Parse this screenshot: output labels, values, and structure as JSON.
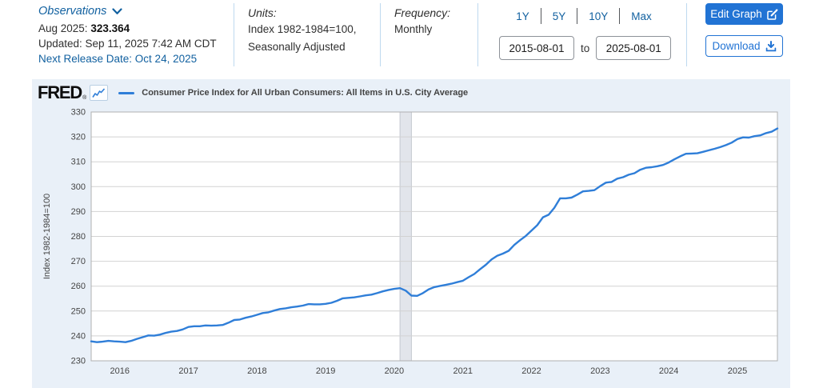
{
  "header": {
    "observations": {
      "label": "Observations",
      "latest_label": "Aug 2025:",
      "latest_value": "323.364",
      "updated": "Updated: Sep 11, 2025 7:42 AM CDT",
      "next_release": "Next Release Date: Oct 24, 2025"
    },
    "units": {
      "label": "Units:",
      "line1": "Index 1982-1984=100,",
      "line2": "Seasonally Adjusted"
    },
    "frequency": {
      "label": "Frequency:",
      "value": "Monthly"
    },
    "range_buttons": [
      "1Y",
      "5Y",
      "10Y",
      "Max"
    ],
    "date_range": {
      "start": "2015-08-01",
      "to_label": "to",
      "end": "2025-08-01"
    },
    "actions": {
      "edit": "Edit Graph",
      "download": "Download"
    }
  },
  "chart": {
    "brand": "FRED",
    "brand_reg": "®",
    "legend_label": "Consumer Price Index for All Urban Consumers: All Items in U.S. City Average",
    "line_color": "#2f7ed8",
    "panel_bg": "#e9f0f8",
    "recession_band_color": "#e2e5eb"
  },
  "chart_data": {
    "type": "line",
    "title": "Consumer Price Index for All Urban Consumers: All Items in U.S. City Average",
    "ylabel": "Index 1982-1984=100",
    "ylim": [
      230,
      330
    ],
    "ytick_step": 10,
    "grid": true,
    "legend_position": "top",
    "start_month": "2015-08",
    "end_month": "2025-08",
    "frequency": "Monthly",
    "x_year_labels": [
      2016,
      2017,
      2018,
      2019,
      2020,
      2021,
      2022,
      2023,
      2024,
      2025
    ],
    "recession": {
      "start": "2020-02",
      "end": "2020-04"
    },
    "values": [
      237.8,
      237.5,
      237.7,
      238.0,
      237.8,
      237.7,
      237.5,
      238.0,
      238.8,
      239.5,
      240.2,
      240.1,
      240.5,
      241.2,
      241.7,
      242.0,
      242.6,
      243.6,
      243.9,
      243.9,
      244.2,
      244.1,
      244.2,
      244.4,
      245.3,
      246.4,
      246.6,
      247.3,
      247.8,
      248.5,
      249.2,
      249.5,
      250.2,
      250.8,
      251.1,
      251.5,
      251.8,
      252.2,
      252.8,
      252.7,
      252.7,
      252.9,
      253.3,
      254.1,
      255.1,
      255.3,
      255.5,
      255.9,
      256.3,
      256.6,
      257.2,
      257.9,
      258.5,
      258.9,
      259.2,
      258.2,
      256.2,
      256.1,
      257.2,
      258.7,
      259.6,
      260.1,
      260.5,
      261.0,
      261.6,
      262.2,
      263.6,
      264.9,
      266.8,
      268.6,
      270.7,
      272.2,
      273.1,
      274.2,
      276.6,
      278.5,
      280.2,
      282.3,
      284.5,
      287.7,
      288.7,
      291.5,
      295.3,
      295.3,
      295.6,
      296.8,
      298.1,
      298.3,
      298.6,
      300.2,
      301.6,
      301.9,
      303.2,
      303.8,
      304.8,
      305.4,
      306.8,
      307.6,
      307.8,
      308.2,
      308.7,
      309.7,
      311.0,
      312.2,
      313.2,
      313.3,
      313.4,
      314.0,
      314.6,
      315.2,
      315.9,
      316.7,
      317.7,
      319.1,
      319.8,
      319.7,
      320.3,
      320.6,
      321.5,
      322.1,
      323.364
    ]
  }
}
